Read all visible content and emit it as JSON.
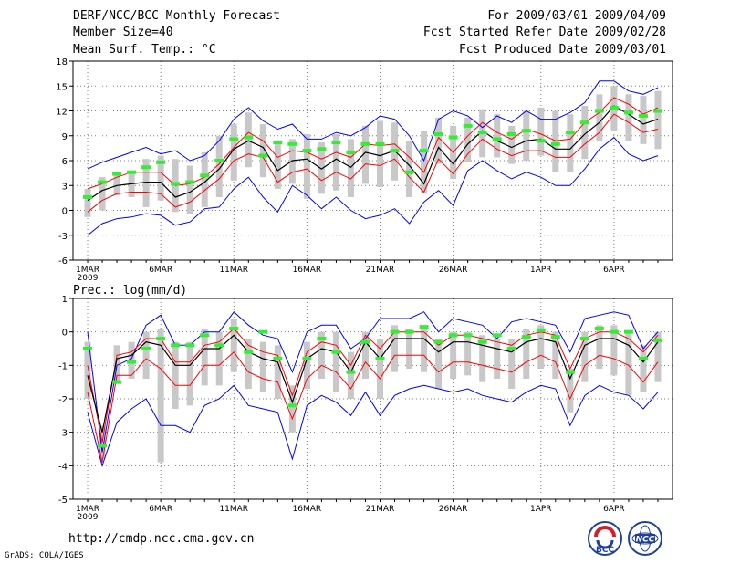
{
  "header": {
    "title": "DERF/NCC/BCC Monthly Forecast",
    "member_size": "Member Size=40",
    "variable": "Mean Surf. Temp.: °C",
    "period": "For 2009/03/01-2009/04/09",
    "started": "Fcst Started Refer Date 2009/02/28",
    "produced": "Fcst Produced Date 2009/03/01"
  },
  "footer": {
    "url": "http://cmdp.ncc.cma.gov.cn",
    "credit": "GrADS: COLA/IGES",
    "logo_left": "BCC",
    "logo_right": "NCC"
  },
  "colors": {
    "envelope": "#0000ff",
    "spread": "#ff0000",
    "mean": "#000000",
    "observed": "#33ee33",
    "range_bar": "#c8c8c8",
    "grid": "#808080"
  },
  "chart_data": [
    {
      "type": "line",
      "title": "Mean Surf. Temp.: °C",
      "days": 40,
      "x_ticks": [
        "1MAR",
        "6MAR",
        "11MAR",
        "16MAR",
        "21MAR",
        "26MAR",
        "1APR",
        "6APR"
      ],
      "x_tick_days": [
        1,
        6,
        11,
        16,
        21,
        26,
        32,
        37
      ],
      "x_sublabel": "2009",
      "ylim": [
        -6,
        18
      ],
      "y_ticks": [
        -6,
        -3,
        0,
        3,
        6,
        9,
        12,
        15,
        18
      ],
      "series": [
        {
          "name": "max",
          "values": [
            5.0,
            5.8,
            6.4,
            7.0,
            7.6,
            6.8,
            7.2,
            6.0,
            6.6,
            8.4,
            11.0,
            12.4,
            10.8,
            9.8,
            10.4,
            8.6,
            8.6,
            9.4,
            9.0,
            10.0,
            11.4,
            11.0,
            9.0,
            6.0,
            11.0,
            12.0,
            11.4,
            10.0,
            11.4,
            10.6,
            12.0,
            11.0,
            11.0,
            11.8,
            13.0,
            15.6,
            15.6,
            14.4,
            14.0,
            14.8
          ]
        },
        {
          "name": "upper_spread",
          "values": [
            2.6,
            3.2,
            4.0,
            4.6,
            4.6,
            4.6,
            3.0,
            3.2,
            4.0,
            5.6,
            7.6,
            9.4,
            8.4,
            6.4,
            7.2,
            7.0,
            6.2,
            7.0,
            6.4,
            8.0,
            7.8,
            8.0,
            6.4,
            4.6,
            8.8,
            7.0,
            9.0,
            10.6,
            9.4,
            8.6,
            9.8,
            9.2,
            8.4,
            8.6,
            10.6,
            11.8,
            13.6,
            12.8,
            11.6,
            12.4
          ]
        },
        {
          "name": "mean",
          "values": [
            1.2,
            2.4,
            3.0,
            3.2,
            3.4,
            3.4,
            1.6,
            2.2,
            3.4,
            5.0,
            7.4,
            8.4,
            7.6,
            4.8,
            6.0,
            6.2,
            5.0,
            6.2,
            5.2,
            7.0,
            6.6,
            7.2,
            5.4,
            3.2,
            7.6,
            5.6,
            8.0,
            9.6,
            8.4,
            7.6,
            8.4,
            8.6,
            7.4,
            7.4,
            9.2,
            10.6,
            12.6,
            11.6,
            10.4,
            11.0
          ]
        },
        {
          "name": "lower_spread",
          "values": [
            -0.2,
            1.2,
            2.0,
            2.2,
            2.2,
            2.0,
            0.4,
            1.0,
            2.4,
            3.8,
            6.0,
            6.8,
            6.4,
            3.4,
            4.6,
            5.0,
            3.6,
            4.6,
            3.8,
            5.6,
            5.4,
            6.2,
            4.0,
            2.2,
            6.2,
            4.4,
            6.8,
            8.6,
            7.4,
            6.6,
            7.2,
            7.2,
            6.4,
            6.4,
            8.0,
            9.4,
            11.6,
            10.6,
            9.4,
            9.8
          ]
        },
        {
          "name": "min",
          "values": [
            -3.0,
            -1.6,
            -1.0,
            -0.8,
            -0.4,
            -0.6,
            -1.8,
            -1.4,
            0.2,
            0.4,
            2.6,
            4.0,
            1.6,
            -0.2,
            3.0,
            1.8,
            0.2,
            1.6,
            0.0,
            -1.0,
            -0.6,
            0.2,
            -1.6,
            1.0,
            2.4,
            0.6,
            4.8,
            6.0,
            4.8,
            3.8,
            4.6,
            4.0,
            3.0,
            3.0,
            5.0,
            7.4,
            8.8,
            6.8,
            6.0,
            6.6
          ]
        },
        {
          "name": "observed",
          "values": [
            1.6,
            3.4,
            4.4,
            4.6,
            5.2,
            5.8,
            3.2,
            3.4,
            4.2,
            6.0,
            8.6,
            8.8,
            6.6,
            8.2,
            8.0,
            7.2,
            7.4,
            8.2,
            7.0,
            8.0,
            8.0,
            7.2,
            4.6,
            7.2,
            9.2,
            8.8,
            10.2,
            9.4,
            8.6,
            9.2,
            9.6,
            8.4,
            8.0,
            9.4,
            10.6,
            12.0,
            12.4,
            11.8,
            11.4,
            12.0
          ]
        },
        {
          "name": "bar_low",
          "values": [
            -0.8,
            0.0,
            1.8,
            1.6,
            0.4,
            1.2,
            -0.2,
            -0.4,
            0.4,
            1.6,
            3.6,
            5.2,
            4.0,
            2.6,
            3.2,
            1.4,
            2.0,
            2.4,
            1.6,
            3.2,
            2.8,
            3.6,
            1.6,
            2.0,
            5.6,
            3.8,
            5.8,
            6.4,
            6.4,
            5.6,
            6.0,
            6.6,
            4.6,
            4.6,
            6.2,
            8.4,
            9.6,
            8.4,
            8.0,
            7.4
          ]
        },
        {
          "name": "bar_high",
          "values": [
            2.6,
            4.0,
            4.4,
            4.8,
            6.2,
            6.6,
            6.2,
            5.4,
            7.0,
            9.0,
            10.4,
            11.8,
            10.4,
            8.0,
            8.6,
            9.2,
            8.2,
            9.2,
            8.6,
            10.2,
            10.8,
            10.6,
            8.4,
            9.6,
            11.2,
            10.2,
            11.2,
            12.2,
            11.6,
            10.2,
            12.0,
            12.4,
            12.0,
            11.6,
            12.6,
            14.0,
            15.0,
            14.0,
            13.8,
            14.4
          ]
        }
      ]
    },
    {
      "type": "line",
      "title": "Prec.: log(mm/d)",
      "days": 40,
      "x_ticks": [
        "1MAR",
        "6MAR",
        "11MAR",
        "16MAR",
        "21MAR",
        "26MAR",
        "1APR",
        "6APR"
      ],
      "x_tick_days": [
        1,
        6,
        11,
        16,
        21,
        26,
        32,
        37
      ],
      "x_sublabel": "2009",
      "ylim": [
        -5,
        1
      ],
      "y_ticks": [
        -5,
        -4,
        -3,
        -2,
        -1,
        0,
        1
      ],
      "series": [
        {
          "name": "max",
          "values": [
            0.0,
            -3.6,
            -1.0,
            -0.8,
            0.2,
            0.5,
            -0.4,
            -0.4,
            0.0,
            0.0,
            0.6,
            0.2,
            -0.1,
            -0.2,
            -1.2,
            0.0,
            0.2,
            0.2,
            -0.5,
            -0.2,
            0.4,
            0.4,
            0.4,
            0.6,
            0.0,
            0.4,
            0.3,
            0.2,
            -0.2,
            0.3,
            0.4,
            0.3,
            0.2,
            -0.6,
            0.4,
            0.5,
            0.6,
            0.5,
            -0.5,
            0.0
          ]
        },
        {
          "name": "upper_spread",
          "values": [
            -1.0,
            -3.3,
            -0.7,
            -0.6,
            -0.2,
            -0.2,
            -0.9,
            -0.9,
            -0.4,
            -0.3,
            0.1,
            -0.4,
            -0.6,
            -0.7,
            -1.9,
            -0.6,
            -0.3,
            -0.4,
            -1.0,
            -0.1,
            -0.5,
            0.0,
            0.0,
            0.0,
            -0.4,
            -0.1,
            -0.1,
            -0.2,
            -0.3,
            -0.4,
            -0.1,
            0.0,
            -0.1,
            -1.1,
            -0.2,
            0.0,
            0.0,
            -0.2,
            -0.6,
            -0.1
          ]
        },
        {
          "name": "mean",
          "values": [
            -1.3,
            -3.0,
            -0.8,
            -0.7,
            -0.3,
            -0.4,
            -1.0,
            -1.0,
            -0.5,
            -0.5,
            -0.1,
            -0.6,
            -0.8,
            -0.9,
            -2.1,
            -0.8,
            -0.5,
            -0.6,
            -1.2,
            -0.3,
            -0.8,
            -0.2,
            -0.2,
            -0.2,
            -0.6,
            -0.3,
            -0.3,
            -0.4,
            -0.5,
            -0.6,
            -0.3,
            -0.2,
            -0.3,
            -1.4,
            -0.4,
            -0.2,
            -0.2,
            -0.4,
            -0.9,
            -0.3
          ]
        },
        {
          "name": "lower_spread",
          "values": [
            -1.8,
            -3.9,
            -1.3,
            -1.3,
            -0.8,
            -1.1,
            -1.6,
            -1.6,
            -1.0,
            -1.0,
            -0.6,
            -1.2,
            -1.4,
            -1.5,
            -2.6,
            -1.4,
            -1.0,
            -1.2,
            -1.7,
            -0.9,
            -1.4,
            -0.7,
            -0.7,
            -0.7,
            -1.2,
            -0.9,
            -0.9,
            -1.0,
            -1.1,
            -1.2,
            -0.9,
            -0.7,
            -0.9,
            -2.0,
            -1.0,
            -0.7,
            -0.8,
            -1.0,
            -1.5,
            -0.9
          ]
        },
        {
          "name": "min",
          "values": [
            -2.4,
            -4.0,
            -2.7,
            -2.3,
            -2.0,
            -2.8,
            -2.8,
            -3.0,
            -2.2,
            -2.0,
            -1.6,
            -2.2,
            -2.3,
            -2.4,
            -3.8,
            -2.2,
            -1.9,
            -2.1,
            -2.5,
            -1.8,
            -2.5,
            -1.9,
            -1.7,
            -1.6,
            -1.7,
            -1.8,
            -1.7,
            -1.9,
            -2.0,
            -2.1,
            -1.8,
            -1.6,
            -1.7,
            -2.8,
            -1.9,
            -1.6,
            -1.8,
            -1.9,
            -2.3,
            -1.8
          ]
        },
        {
          "name": "observed",
          "values": [
            -0.5,
            -3.4,
            -1.5,
            -0.9,
            -0.5,
            -0.2,
            -0.4,
            -0.4,
            -0.1,
            -0.4,
            0.1,
            -0.6,
            0.0,
            -0.8,
            -2.2,
            -0.8,
            -0.2,
            -0.6,
            -1.2,
            -0.3,
            -0.8,
            0.0,
            0.0,
            0.15,
            -0.3,
            -0.1,
            -0.1,
            -0.3,
            -0.1,
            -0.5,
            -0.15,
            0.05,
            -0.15,
            -1.2,
            -0.2,
            0.1,
            0.0,
            0.0,
            -0.8,
            -0.25
          ]
        },
        {
          "name": "bar_low",
          "values": [
            -2.0,
            -3.8,
            -1.5,
            -1.4,
            -1.4,
            -3.9,
            -2.3,
            -2.2,
            -1.6,
            -1.6,
            -1.2,
            -1.7,
            -1.8,
            -2.0,
            -3.0,
            -1.7,
            -1.4,
            -1.8,
            -2.0,
            -1.4,
            -2.0,
            -1.2,
            -1.1,
            -1.2,
            -1.7,
            -1.4,
            -1.3,
            -1.5,
            -1.4,
            -1.7,
            -1.4,
            -1.1,
            -1.4,
            -2.4,
            -1.5,
            -1.1,
            -1.3,
            -1.9,
            -1.8,
            -1.5
          ]
        },
        {
          "name": "bar_high",
          "values": [
            -0.3,
            -2.8,
            -0.4,
            -0.3,
            0.0,
            0.1,
            -0.3,
            -0.3,
            0.1,
            0.0,
            0.4,
            -0.2,
            -0.3,
            -0.4,
            -1.6,
            -0.3,
            0.0,
            0.0,
            -0.6,
            0.0,
            -0.2,
            0.2,
            0.1,
            0.2,
            -0.2,
            0.0,
            0.0,
            -0.1,
            -0.2,
            -0.2,
            0.1,
            0.2,
            0.0,
            -1.1,
            0.0,
            0.2,
            0.2,
            0.0,
            -0.4,
            0.0
          ]
        }
      ]
    }
  ]
}
